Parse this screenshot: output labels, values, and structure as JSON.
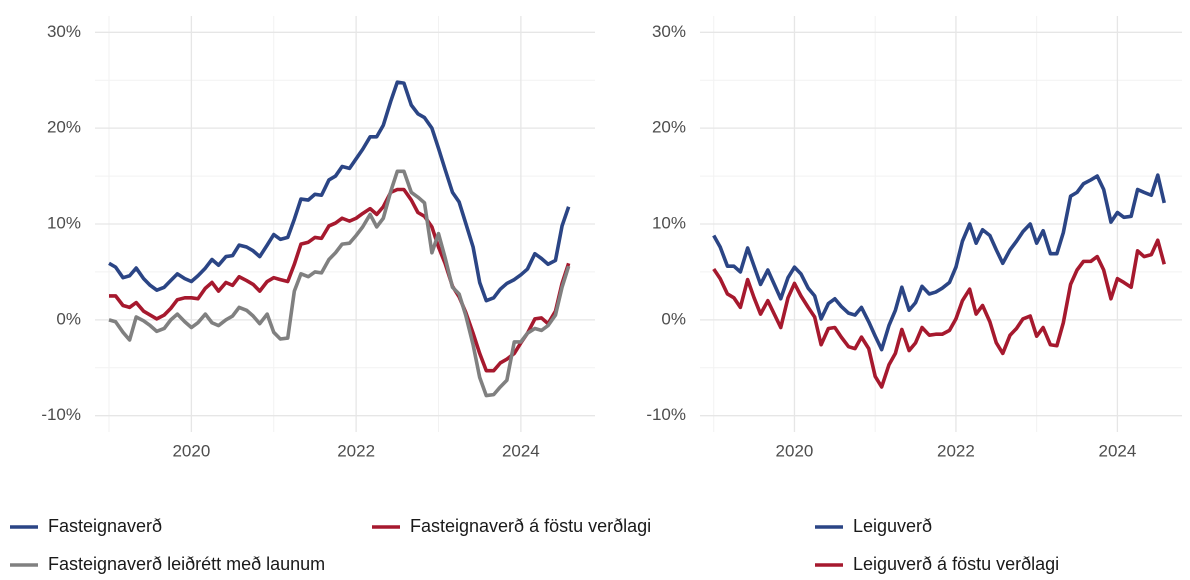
{
  "chart_data": [
    {
      "type": "line",
      "grid": true,
      "legend": "bottom",
      "xlim": [
        2018.83,
        2024.9
      ],
      "ylim": [
        -11.7,
        31.7
      ],
      "xticks": [
        2020,
        2022,
        2024
      ],
      "yticks": [
        {
          "value": -10,
          "label": "-10%"
        },
        {
          "value": 0,
          "label": "0%"
        },
        {
          "value": 10,
          "label": "10%"
        },
        {
          "value": 20,
          "label": "20%"
        },
        {
          "value": 30,
          "label": "30%"
        }
      ],
      "x": [
        2019,
        2019.08,
        2019.17,
        2019.25,
        2019.33,
        2019.42,
        2019.5,
        2019.58,
        2019.67,
        2019.75,
        2019.83,
        2019.92,
        2020,
        2020.08,
        2020.17,
        2020.25,
        2020.33,
        2020.42,
        2020.5,
        2020.58,
        2020.67,
        2020.75,
        2020.83,
        2020.92,
        2021,
        2021.08,
        2021.17,
        2021.25,
        2021.33,
        2021.42,
        2021.5,
        2021.58,
        2021.67,
        2021.75,
        2021.83,
        2021.92,
        2022,
        2022.08,
        2022.17,
        2022.25,
        2022.33,
        2022.42,
        2022.5,
        2022.58,
        2022.67,
        2022.75,
        2022.83,
        2022.92,
        2023,
        2023.08,
        2023.17,
        2023.25,
        2023.33,
        2023.42,
        2023.5,
        2023.58,
        2023.67,
        2023.75,
        2023.83,
        2023.92,
        2024,
        2024.08,
        2024.17,
        2024.25,
        2024.33,
        2024.42,
        2024.5,
        2024.58
      ],
      "series": [
        {
          "name": "Fasteignaverð",
          "color": "#2b4585",
          "values": [
            5.9,
            5.5,
            4.4,
            4.6,
            5.4,
            4.3,
            3.6,
            3.1,
            3.4,
            4.1,
            4.8,
            4.3,
            4.0,
            4.6,
            5.4,
            6.3,
            5.7,
            6.6,
            6.7,
            7.8,
            7.6,
            7.2,
            6.6,
            7.8,
            8.9,
            8.4,
            8.6,
            10.5,
            12.6,
            12.5,
            13.1,
            13.0,
            14.6,
            15.0,
            16.0,
            15.8,
            16.8,
            17.8,
            19.1,
            19.1,
            20.3,
            22.8,
            24.8,
            24.7,
            22.4,
            21.5,
            21.1,
            20.0,
            17.9,
            15.7,
            13.3,
            12.3,
            10.1,
            7.6,
            3.9,
            2.0,
            2.3,
            3.2,
            3.8,
            4.2,
            4.7,
            5.3,
            6.9,
            6.4,
            5.8,
            6.2,
            9.8,
            11.8
          ]
        },
        {
          "name": "Fasteignaverð á föstu verðlagi",
          "color": "#a6192e",
          "values": [
            2.5,
            2.5,
            1.5,
            1.3,
            1.8,
            0.9,
            0.5,
            0.1,
            0.5,
            1.2,
            2.1,
            2.3,
            2.3,
            2.2,
            3.3,
            3.9,
            3.0,
            3.9,
            3.6,
            4.5,
            4.1,
            3.7,
            3.0,
            4.0,
            4.4,
            4.2,
            4.0,
            5.8,
            7.9,
            8.1,
            8.6,
            8.5,
            9.8,
            10.1,
            10.6,
            10.3,
            10.6,
            11.1,
            11.6,
            11.0,
            11.8,
            13.3,
            13.6,
            13.6,
            12.5,
            11.2,
            10.8,
            9.7,
            7.6,
            5.9,
            3.5,
            2.4,
            0.8,
            -1.4,
            -3.5,
            -5.3,
            -5.3,
            -4.5,
            -4.1,
            -3.5,
            -2.4,
            -1.4,
            0.1,
            0.2,
            -0.4,
            0.9,
            3.8,
            5.9
          ]
        },
        {
          "name": "Fasteignaverð leiðrétt með launum",
          "color": "#808080",
          "values": [
            0.0,
            -0.2,
            -1.3,
            -2.1,
            0.3,
            -0.1,
            -0.6,
            -1.2,
            -0.9,
            0.0,
            0.6,
            -0.2,
            -0.8,
            -0.3,
            0.6,
            -0.3,
            -0.6,
            0.0,
            0.4,
            1.3,
            1.0,
            0.4,
            -0.4,
            0.6,
            -1.3,
            -2.0,
            -1.9,
            3.0,
            4.8,
            4.5,
            5.0,
            4.9,
            6.3,
            7.0,
            7.9,
            8.0,
            8.8,
            9.7,
            11.0,
            9.7,
            10.6,
            13.4,
            15.5,
            15.5,
            13.3,
            12.8,
            12.2,
            7.0,
            9.0,
            6.5,
            3.4,
            2.7,
            0.5,
            -2.6,
            -6.0,
            -7.9,
            -7.8,
            -7.0,
            -6.3,
            -2.3,
            -2.3,
            -1.4,
            -0.9,
            -1.1,
            -0.6,
            0.5,
            3.4,
            5.6
          ]
        }
      ]
    },
    {
      "type": "line",
      "grid": true,
      "legend": "bottom",
      "xlim": [
        2018.83,
        2024.8
      ],
      "ylim": [
        -11.7,
        31.7
      ],
      "xticks": [
        2020,
        2022,
        2024
      ],
      "yticks": [
        {
          "value": -10,
          "label": "-10%"
        },
        {
          "value": 0,
          "label": "0%"
        },
        {
          "value": 10,
          "label": "10%"
        },
        {
          "value": 20,
          "label": "20%"
        },
        {
          "value": 30,
          "label": "30%"
        }
      ],
      "x": [
        2019,
        2019.08,
        2019.17,
        2019.25,
        2019.33,
        2019.42,
        2019.5,
        2019.58,
        2019.67,
        2019.75,
        2019.83,
        2019.92,
        2020,
        2020.08,
        2020.17,
        2020.25,
        2020.33,
        2020.42,
        2020.5,
        2020.58,
        2020.67,
        2020.75,
        2020.83,
        2020.92,
        2021,
        2021.08,
        2021.17,
        2021.25,
        2021.33,
        2021.42,
        2021.5,
        2021.58,
        2021.67,
        2021.75,
        2021.83,
        2021.92,
        2022,
        2022.08,
        2022.17,
        2022.25,
        2022.33,
        2022.42,
        2022.5,
        2022.58,
        2022.67,
        2022.75,
        2022.83,
        2022.92,
        2023,
        2023.08,
        2023.17,
        2023.25,
        2023.33,
        2023.42,
        2023.5,
        2023.58,
        2023.67,
        2023.75,
        2023.83,
        2023.92,
        2024,
        2024.08,
        2024.17,
        2024.25,
        2024.33,
        2024.42,
        2024.5,
        2024.58
      ],
      "series": [
        {
          "name": "Leiguverð",
          "color": "#2b4585",
          "values": [
            8.8,
            7.6,
            5.6,
            5.6,
            5.0,
            7.5,
            5.6,
            3.7,
            5.2,
            3.7,
            2.2,
            4.4,
            5.5,
            4.8,
            3.3,
            2.5,
            0.1,
            1.7,
            2.2,
            1.4,
            0.7,
            0.5,
            1.3,
            -0.2,
            -1.7,
            -3.1,
            -0.6,
            1.0,
            3.4,
            1.0,
            1.8,
            3.5,
            2.7,
            2.9,
            3.3,
            3.9,
            5.5,
            8.2,
            10.0,
            8.0,
            9.4,
            8.8,
            7.3,
            5.9,
            7.3,
            8.2,
            9.2,
            10.0,
            8.0,
            9.3,
            6.9,
            6.9,
            9.1,
            12.9,
            13.3,
            14.2,
            14.6,
            15.0,
            13.6,
            10.2,
            11.2,
            10.7,
            10.8,
            13.6,
            13.3,
            13.0,
            15.1,
            12.2
          ]
        },
        {
          "name": "Leiguverð á föstu verðlagi",
          "color": "#a6192e",
          "values": [
            5.3,
            4.3,
            2.7,
            2.3,
            1.3,
            4.2,
            2.3,
            0.6,
            2.0,
            0.6,
            -0.8,
            2.3,
            3.8,
            2.5,
            1.3,
            0.3,
            -2.6,
            -0.9,
            -0.8,
            -1.8,
            -2.8,
            -3.0,
            -1.8,
            -3.0,
            -5.9,
            -7.0,
            -4.7,
            -3.5,
            -1.0,
            -3.2,
            -2.4,
            -0.8,
            -1.6,
            -1.5,
            -1.5,
            -1.1,
            0.1,
            2.0,
            3.2,
            0.6,
            1.5,
            -0.2,
            -2.4,
            -3.5,
            -1.6,
            -0.9,
            0.1,
            0.4,
            -1.7,
            -0.8,
            -2.6,
            -2.7,
            -0.3,
            3.7,
            5.2,
            6.1,
            6.1,
            6.6,
            5.2,
            2.2,
            4.3,
            3.9,
            3.4,
            7.2,
            6.6,
            6.8,
            8.3,
            5.8
          ]
        }
      ]
    }
  ]
}
